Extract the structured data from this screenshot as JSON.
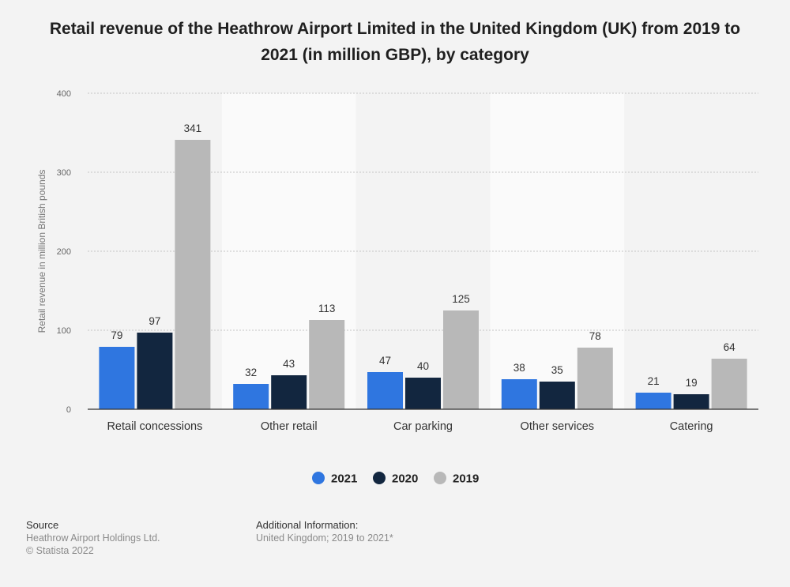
{
  "title": "Retail revenue of the Heathrow Airport Limited in the United Kingdom (UK) from 2019 to 2021 (in million GBP), by category",
  "chart_data": {
    "type": "bar",
    "title": "Retail revenue of the Heathrow Airport Limited in the United Kingdom (UK) from 2019 to 2021 (in million GBP), by category",
    "xlabel": "",
    "ylabel": "Retail revenue in million British pounds",
    "ylim": [
      0,
      400
    ],
    "yticks": [
      0,
      100,
      200,
      300,
      400
    ],
    "grid": true,
    "legend_position": "bottom",
    "categories": [
      "Retail concessions",
      "Other retail",
      "Car parking",
      "Other services",
      "Catering"
    ],
    "series": [
      {
        "name": "2021",
        "color": "#2f76e0",
        "values": [
          79,
          32,
          47,
          38,
          21
        ]
      },
      {
        "name": "2020",
        "color": "#12263f",
        "values": [
          97,
          43,
          40,
          35,
          19
        ]
      },
      {
        "name": "2019",
        "color": "#b8b8b8",
        "values": [
          341,
          113,
          125,
          78,
          64
        ]
      }
    ]
  },
  "footer": {
    "source_heading": "Source",
    "source_lines": [
      "Heathrow Airport Holdings Ltd.",
      "© Statista 2022"
    ],
    "info_heading": "Additional Information:",
    "info_lines": [
      "United Kingdom; 2019 to 2021*"
    ]
  }
}
